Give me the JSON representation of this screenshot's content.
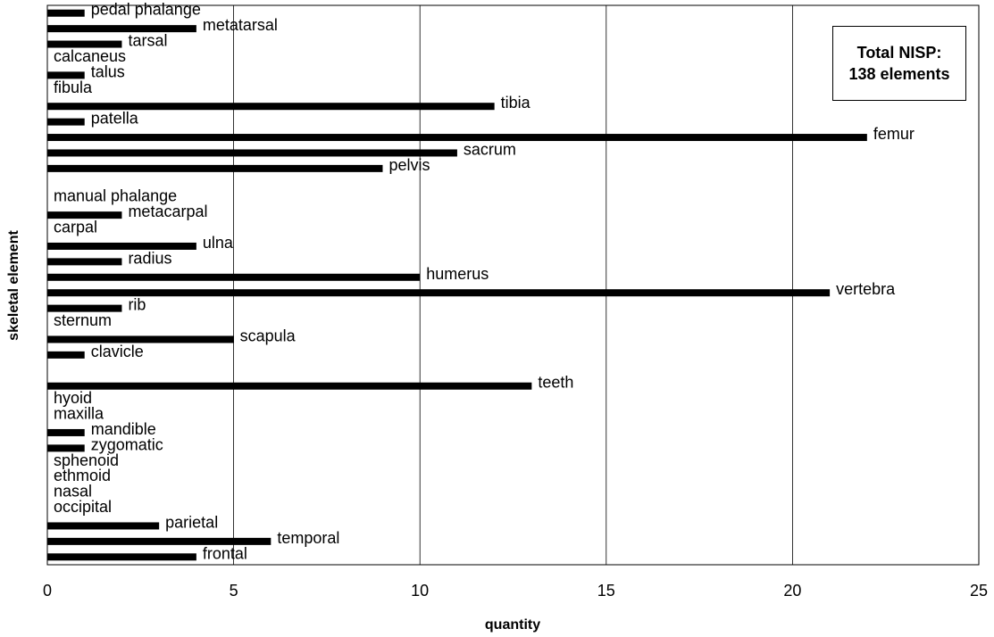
{
  "chart_data": {
    "type": "bar",
    "orientation": "horizontal",
    "xlabel": "quantity",
    "ylabel": "skeletal element",
    "xlim": [
      0,
      25
    ],
    "xticks": [
      "0",
      "5",
      "10",
      "15",
      "20",
      "25"
    ],
    "grid": "vertical",
    "bar_color": "#000000",
    "categories": [
      "pedal phalange",
      "metatarsal",
      "tarsal",
      "calcaneus",
      "talus",
      "fibula",
      "tibia",
      "patella",
      "femur",
      "sacrum",
      "pelvis",
      "",
      "manual phalange",
      "metacarpal",
      "carpal",
      "ulna",
      "radius",
      "humerus",
      "vertebra",
      "rib",
      "sternum",
      "scapula",
      "clavicle",
      "",
      "teeth",
      "hyoid",
      "maxilla",
      "mandible",
      "zygomatic",
      "sphenoid",
      "ethmoid",
      "nasal",
      "occipital",
      "parietal",
      "temporal",
      "frontal"
    ],
    "values": [
      1,
      4,
      2,
      0,
      1,
      0,
      12,
      1,
      22,
      11,
      9,
      null,
      0,
      2,
      0,
      4,
      2,
      10,
      21,
      2,
      0,
      5,
      1,
      null,
      13,
      0,
      0,
      1,
      1,
      0,
      0,
      0,
      0,
      3,
      6,
      4
    ],
    "annotation": {
      "line1": "Total NISP:",
      "line2": "138 elements",
      "placement": "top-right"
    }
  }
}
